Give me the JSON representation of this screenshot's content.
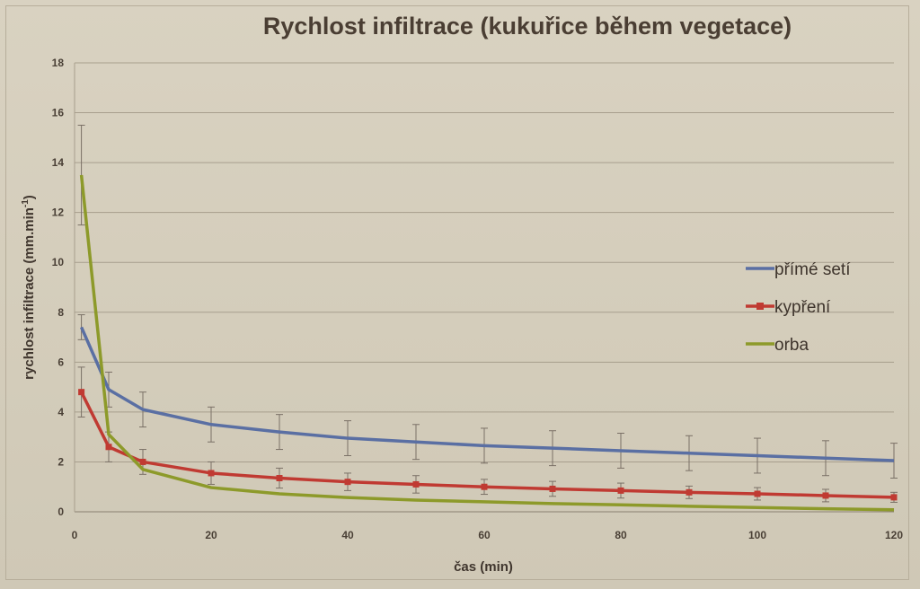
{
  "chart_data": {
    "type": "line",
    "title": "Rychlost infiltrace (kukuřice během vegetace)",
    "xlabel": "čas (min)",
    "ylabel_main": "rychlost infiltrace (mm.min",
    "ylabel_sup": "-1",
    "ylabel_close": ")",
    "xlim": [
      0,
      120
    ],
    "ylim": [
      0,
      18
    ],
    "x_ticks": [
      0,
      20,
      40,
      60,
      80,
      100,
      120
    ],
    "y_ticks": [
      0,
      2,
      4,
      6,
      8,
      10,
      12,
      14,
      16,
      18
    ],
    "grid": true,
    "legend_position": "right",
    "x": [
      1,
      5,
      10,
      20,
      30,
      40,
      50,
      60,
      70,
      80,
      90,
      100,
      110,
      120
    ],
    "series": [
      {
        "name": "přímé setí",
        "color": "#5a6fa3",
        "values": [
          7.4,
          4.9,
          4.1,
          3.5,
          3.2,
          2.95,
          2.8,
          2.65,
          2.55,
          2.45,
          2.35,
          2.25,
          2.15,
          2.05
        ],
        "errors": [
          0.5,
          0.7,
          0.7,
          0.7,
          0.7,
          0.7,
          0.7,
          0.7,
          0.7,
          0.7,
          0.7,
          0.7,
          0.7,
          0.7
        ]
      },
      {
        "name": "kypření",
        "color": "#c03a32",
        "values": [
          4.8,
          2.6,
          2.0,
          1.55,
          1.35,
          1.2,
          1.1,
          1.0,
          0.92,
          0.85,
          0.78,
          0.72,
          0.65,
          0.58
        ],
        "errors": [
          1.0,
          0.6,
          0.5,
          0.45,
          0.4,
          0.35,
          0.35,
          0.3,
          0.3,
          0.3,
          0.25,
          0.25,
          0.25,
          0.2
        ]
      },
      {
        "name": "orba",
        "color": "#8d9a2a",
        "values": [
          13.5,
          3.1,
          1.7,
          0.97,
          0.72,
          0.57,
          0.47,
          0.4,
          0.33,
          0.28,
          0.22,
          0.17,
          0.12,
          0.08
        ],
        "errors": [
          2.0,
          0,
          0,
          0,
          0,
          0,
          0,
          0,
          0,
          0,
          0,
          0,
          0,
          0
        ]
      }
    ]
  }
}
